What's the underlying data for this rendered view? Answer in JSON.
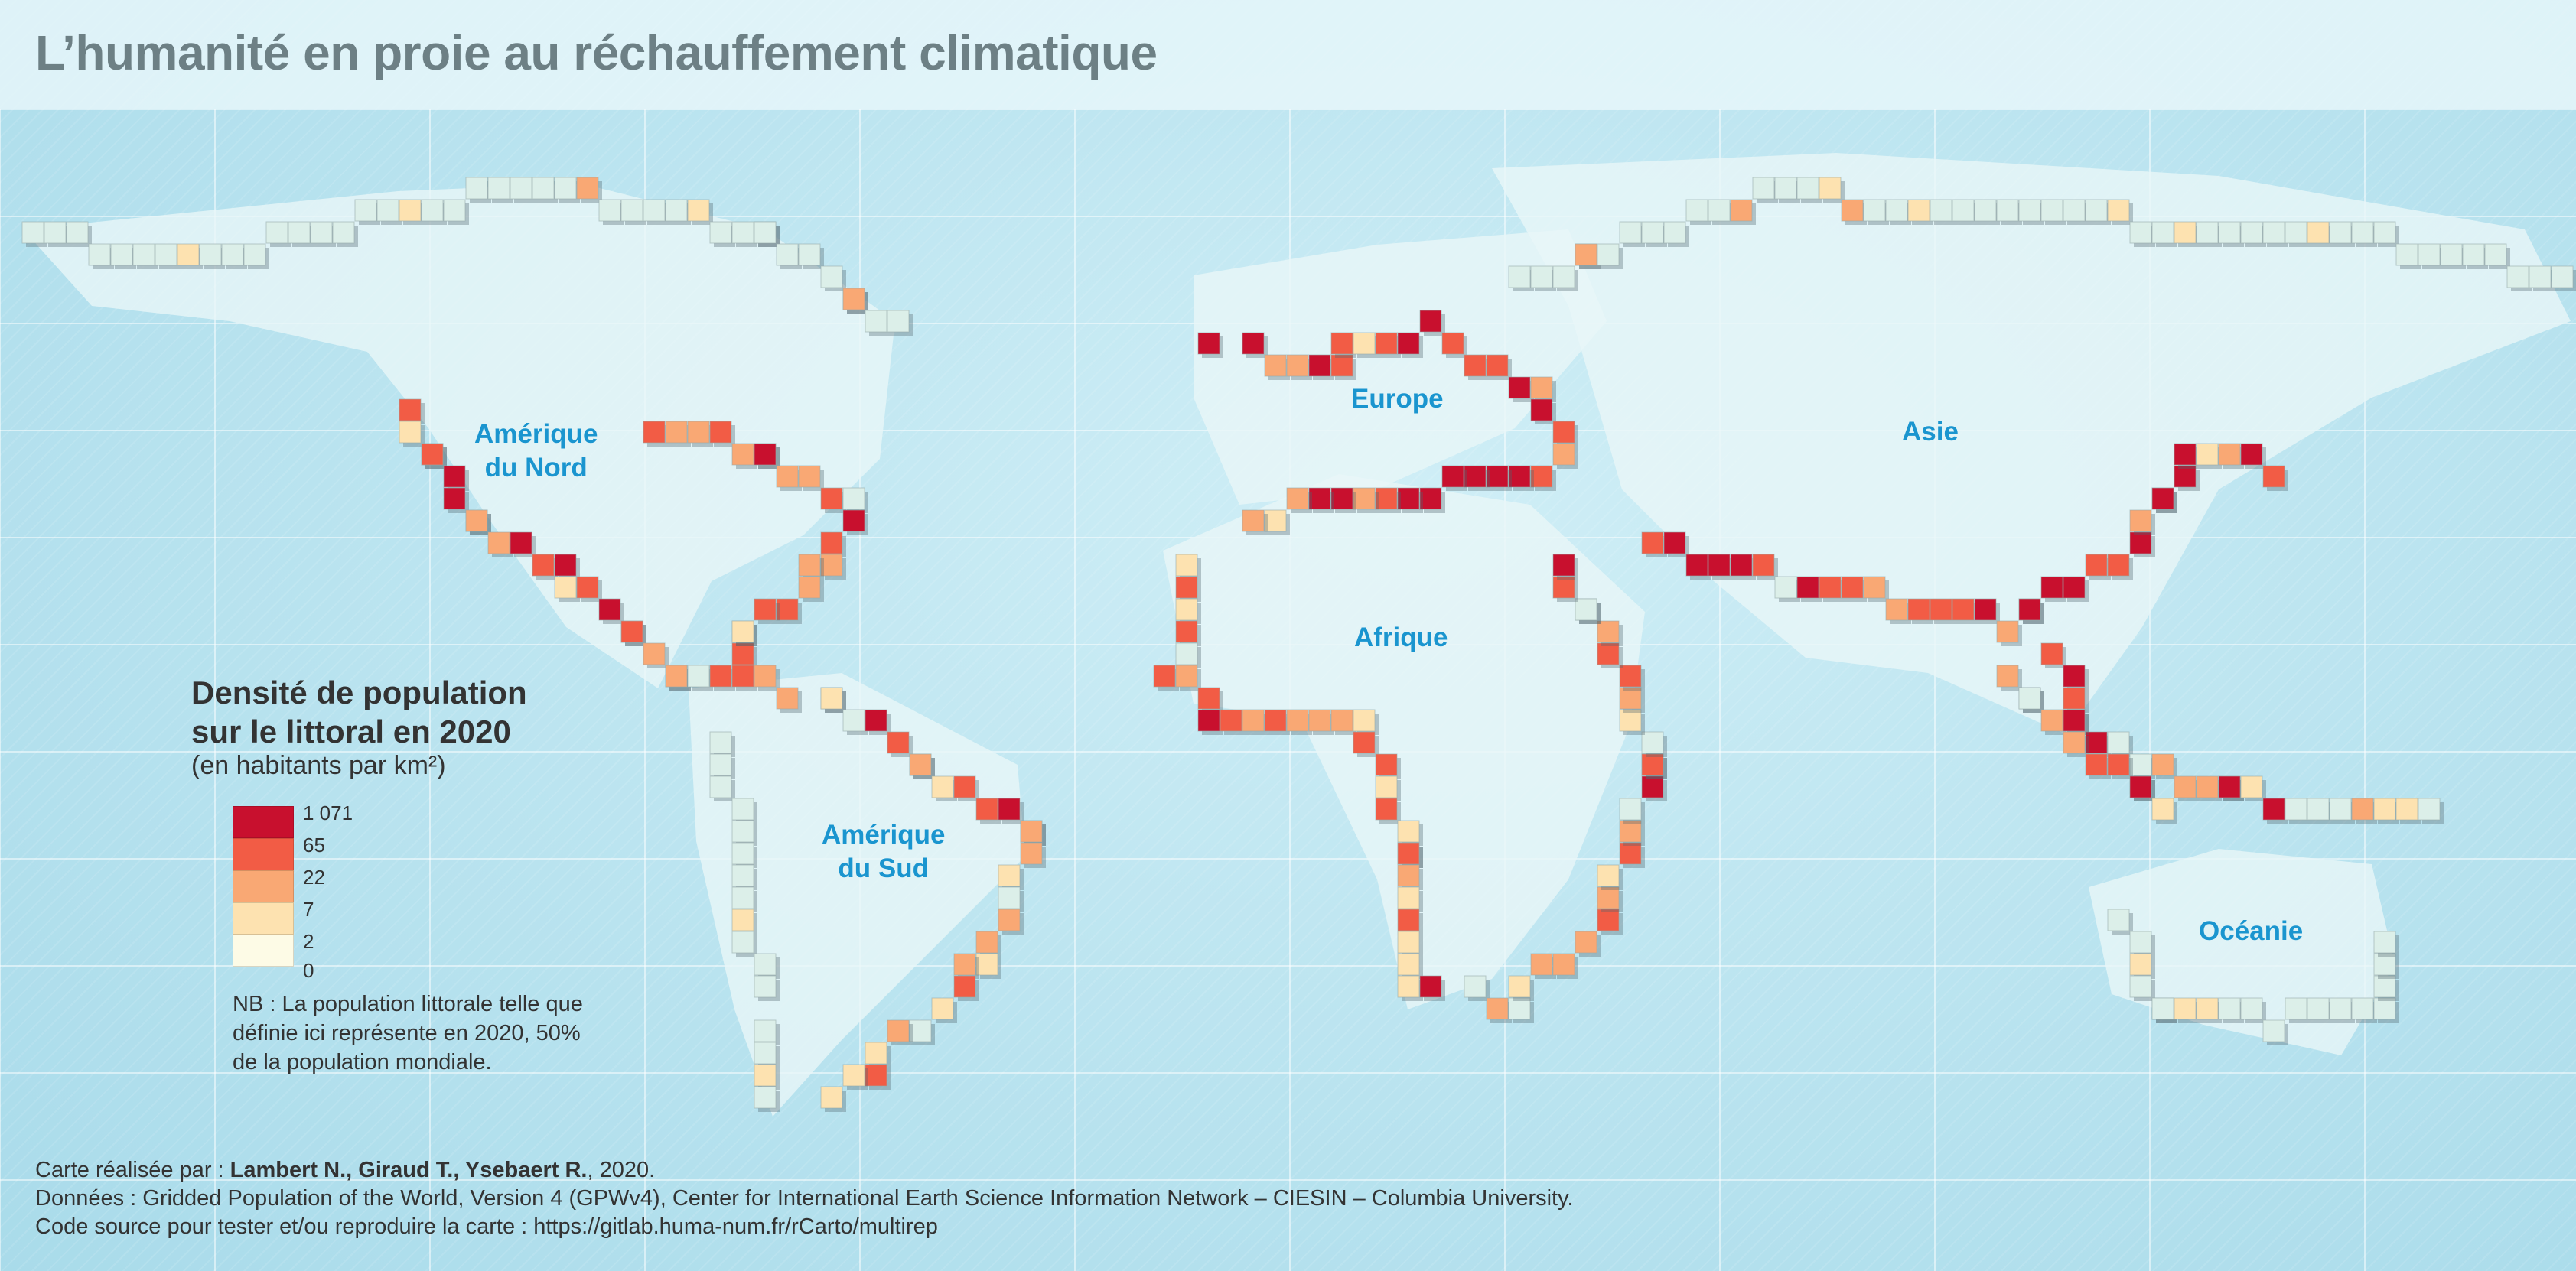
{
  "title": "L’humanité en proie au réchauffement climatique",
  "continents": {
    "amerique_nord": "Amérique\ndu Nord",
    "europe": "Europe",
    "asie": "Asie",
    "afrique": "Afrique",
    "amerique_sud": "Amérique\ndu Sud",
    "oceanie": "Océanie"
  },
  "legend": {
    "title": "Densité de population\nsur le littoral en 2020",
    "subtitle": "(en habitants par km²)",
    "classes": [
      {
        "label": "1 071",
        "color": "#c8102e"
      },
      {
        "label": "65",
        "color": "#f25c45"
      },
      {
        "label": "22",
        "color": "#f9a874"
      },
      {
        "label": "7",
        "color": "#fde2b0"
      },
      {
        "label": "2",
        "color": "#fdfbe6"
      }
    ],
    "min_label": "0",
    "note": "NB : La population littorale telle que définie ici représente en 2020, 50% de la population mondiale."
  },
  "credits": {
    "line1_prefix": "Carte réalisée par : ",
    "line1_authors": "Lambert N., Giraud T., Ysebaert R.",
    "line1_suffix": ", 2020.",
    "line2": "Données : Gridded Population of the World, Version 4 (GPWv4), Center for International Earth Science Information Network – CIESIN – Columbia University.",
    "line3": "Code source pour tester et/ou reproduire la carte : https://gitlab.huma-num.fr/rCarto/multirep"
  },
  "colors": {
    "cell_empty": "#dcefe9",
    "very_high": "#c8102e",
    "high": "#f25c45",
    "medium": "#f9a874",
    "low": "#fde2b0",
    "continent_label": "#1a95cf",
    "title": "#6d8085"
  }
}
